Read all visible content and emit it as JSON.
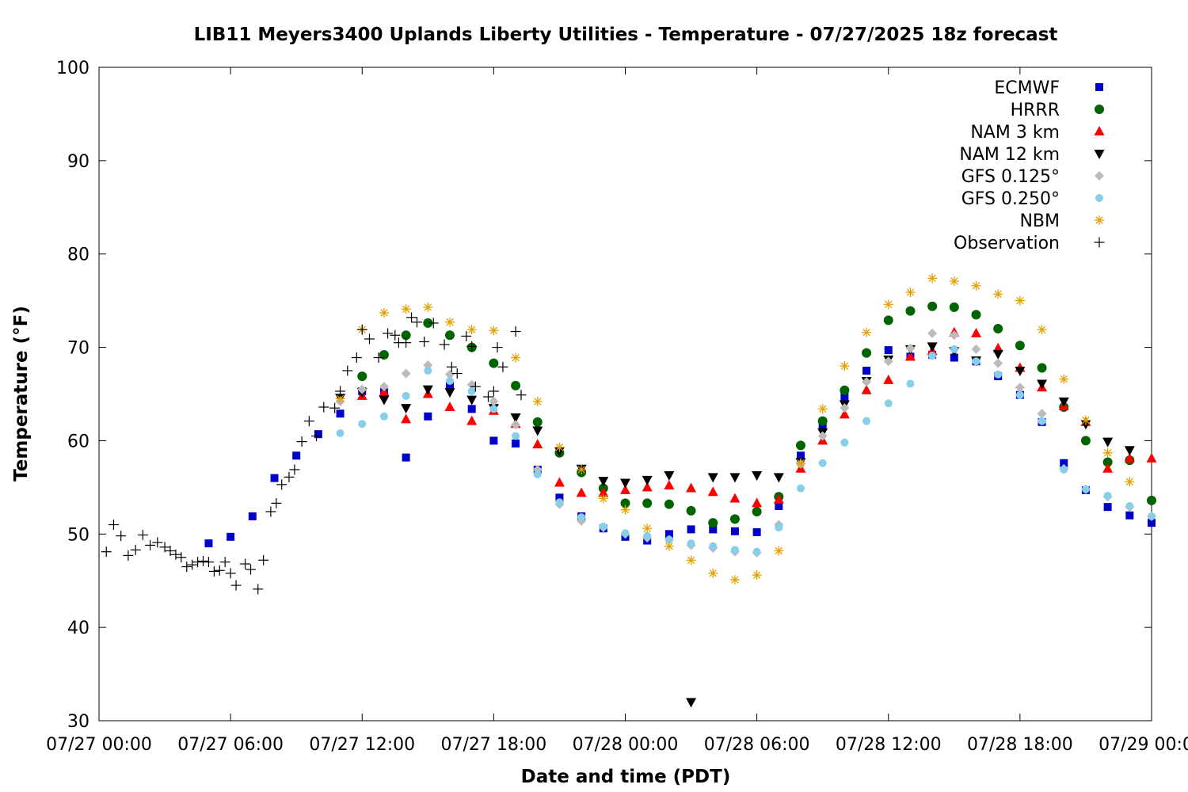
{
  "chart_data": {
    "type": "scatter",
    "title": "LIB11 Meyers3400 Uplands Liberty Utilities - Temperature - 07/27/2025 18z forecast",
    "xlabel": "Date and time (PDT)",
    "ylabel": "Temperature (°F)",
    "xlim": [
      "07/27 00:00",
      "07/29 00:00"
    ],
    "ylim": [
      30,
      100
    ],
    "x_ticks": [
      "07/27 00:00",
      "07/27 06:00",
      "07/27 12:00",
      "07/27 18:00",
      "07/28 00:00",
      "07/28 06:00",
      "07/28 12:00",
      "07/28 18:00",
      "07/29 00:00"
    ],
    "y_ticks": [
      "30",
      "40",
      "50",
      "60",
      "70",
      "80",
      "90",
      "100"
    ],
    "grid": false,
    "legend_position": "top-right",
    "series": [
      {
        "name": "ECMWF",
        "marker": "square",
        "color": "#0000cc",
        "x": [
          "07/27 05:00",
          "07/27 06:00",
          "07/27 07:00",
          "07/27 08:00",
          "07/27 09:00",
          "07/27 10:00",
          "07/27 11:00",
          "07/27 12:00",
          "07/27 13:00",
          "07/27 14:00",
          "07/27 15:00",
          "07/27 16:00",
          "07/27 17:00",
          "07/27 18:00",
          "07/27 19:00",
          "07/27 20:00",
          "07/27 21:00",
          "07/27 22:00",
          "07/27 23:00",
          "07/28 00:00",
          "07/28 01:00",
          "07/28 02:00",
          "07/28 03:00",
          "07/28 04:00",
          "07/28 05:00",
          "07/28 06:00",
          "07/28 07:00",
          "07/28 08:00",
          "07/28 09:00",
          "07/28 10:00",
          "07/28 11:00",
          "07/28 12:00",
          "07/28 13:00",
          "07/28 14:00",
          "07/28 15:00",
          "07/28 16:00",
          "07/28 17:00",
          "07/28 18:00",
          "07/28 19:00",
          "07/28 20:00",
          "07/28 21:00",
          "07/28 22:00",
          "07/28 23:00",
          "07/29 00:00"
        ],
        "y": [
          49.0,
          49.7,
          51.9,
          56.0,
          58.4,
          60.7,
          62.9,
          65.3,
          65.2,
          58.2,
          62.6,
          65.9,
          63.4,
          60.0,
          59.7,
          56.9,
          53.9,
          51.9,
          50.6,
          49.7,
          49.3,
          50.0,
          50.5,
          50.5,
          50.3,
          50.2,
          53.0,
          58.4,
          61.6,
          64.7,
          67.5,
          69.7,
          69.0,
          69.2,
          68.9,
          68.5,
          66.9,
          64.9,
          62.0,
          57.6,
          54.7,
          52.9,
          52.0,
          51.2
        ]
      },
      {
        "name": "HRRR",
        "marker": "circle",
        "color": "#006400",
        "x": [
          "07/27 12:00",
          "07/27 13:00",
          "07/27 14:00",
          "07/27 15:00",
          "07/27 16:00",
          "07/27 17:00",
          "07/27 18:00",
          "07/27 19:00",
          "07/27 20:00",
          "07/27 21:00",
          "07/27 22:00",
          "07/27 23:00",
          "07/28 00:00",
          "07/28 01:00",
          "07/28 02:00",
          "07/28 03:00",
          "07/28 04:00",
          "07/28 05:00",
          "07/28 06:00",
          "07/28 07:00",
          "07/28 08:00",
          "07/28 09:00",
          "07/28 10:00",
          "07/28 11:00",
          "07/28 12:00",
          "07/28 13:00",
          "07/28 14:00",
          "07/28 15:00",
          "07/28 16:00",
          "07/28 17:00",
          "07/28 18:00",
          "07/28 19:00",
          "07/28 20:00",
          "07/28 21:00",
          "07/28 22:00",
          "07/28 23:00",
          "07/29 00:00"
        ],
        "y": [
          66.9,
          69.2,
          71.3,
          72.6,
          71.3,
          70.0,
          68.3,
          65.9,
          62.0,
          58.7,
          56.6,
          54.9,
          53.3,
          53.3,
          53.2,
          52.5,
          51.2,
          51.6,
          52.4,
          54.0,
          59.5,
          62.1,
          65.4,
          69.4,
          72.9,
          73.9,
          74.4,
          74.3,
          73.5,
          72.0,
          70.2,
          67.8,
          63.6,
          60.0,
          57.7,
          57.9,
          53.6
        ]
      },
      {
        "name": "NAM 3 km",
        "marker": "triangle-up",
        "color": "#ff0000",
        "x": [
          "07/27 12:00",
          "07/27 13:00",
          "07/27 14:00",
          "07/27 15:00",
          "07/27 16:00",
          "07/27 17:00",
          "07/27 18:00",
          "07/27 19:00",
          "07/27 20:00",
          "07/27 21:00",
          "07/27 22:00",
          "07/27 23:00",
          "07/28 00:00",
          "07/28 01:00",
          "07/28 02:00",
          "07/28 03:00",
          "07/28 04:00",
          "07/28 05:00",
          "07/28 06:00",
          "07/28 07:00",
          "07/28 08:00",
          "07/28 09:00",
          "07/28 10:00",
          "07/28 11:00",
          "07/28 12:00",
          "07/28 13:00",
          "07/28 14:00",
          "07/28 15:00",
          "07/28 16:00",
          "07/28 17:00",
          "07/28 18:00",
          "07/28 19:00",
          "07/28 20:00",
          "07/28 21:00",
          "07/28 22:00",
          "07/28 23:00",
          "07/29 00:00"
        ],
        "y": [
          64.8,
          65.2,
          62.3,
          65.0,
          63.6,
          62.1,
          63.2,
          61.8,
          59.6,
          55.5,
          54.4,
          54.4,
          54.7,
          55.0,
          55.2,
          54.9,
          54.5,
          53.8,
          53.3,
          53.7,
          57.0,
          60.0,
          62.8,
          65.4,
          66.5,
          69.0,
          69.6,
          71.6,
          71.5,
          69.9,
          67.8,
          65.7,
          63.7,
          62.0,
          57.0,
          58.1,
          58.1
        ]
      },
      {
        "name": "NAM 12 km",
        "marker": "triangle-down",
        "color": "#000000",
        "x": [
          "07/27 11:00",
          "07/27 12:00",
          "07/27 13:00",
          "07/27 14:00",
          "07/27 15:00",
          "07/27 16:00",
          "07/27 17:00",
          "07/27 18:00",
          "07/27 19:00",
          "07/27 20:00",
          "07/27 21:00",
          "07/27 22:00",
          "07/27 23:00",
          "07/28 00:00",
          "07/28 01:00",
          "07/28 02:00",
          "07/28 03:00",
          "07/28 04:00",
          "07/28 05:00",
          "07/28 06:00",
          "07/28 07:00",
          "07/28 08:00",
          "07/28 09:00",
          "07/28 10:00",
          "07/28 11:00",
          "07/28 12:00",
          "07/28 13:00",
          "07/28 14:00",
          "07/28 15:00",
          "07/28 16:00",
          "07/28 17:00",
          "07/28 18:00",
          "07/28 19:00",
          "07/28 20:00",
          "07/28 21:00",
          "07/28 22:00",
          "07/28 23:00"
        ],
        "y": [
          64.6,
          65.2,
          64.4,
          63.5,
          65.5,
          65.2,
          64.4,
          63.5,
          62.5,
          61.1,
          58.9,
          57.0,
          55.7,
          55.5,
          55.8,
          56.3,
          32.0,
          56.1,
          56.1,
          56.3,
          56.1,
          57.7,
          60.9,
          63.9,
          66.4,
          68.7,
          69.8,
          70.1,
          69.6,
          68.6,
          69.3,
          67.5,
          66.1,
          64.2,
          61.8,
          59.9,
          59.0
        ]
      },
      {
        "name": "GFS 0.125°",
        "marker": "diamond",
        "color": "#bbbbbb",
        "x": [
          "07/27 11:00",
          "07/27 12:00",
          "07/27 13:00",
          "07/27 14:00",
          "07/27 15:00",
          "07/27 16:00",
          "07/27 17:00",
          "07/27 18:00",
          "07/27 19:00",
          "07/27 20:00",
          "07/27 21:00",
          "07/27 22:00",
          "07/27 23:00",
          "07/28 00:00",
          "07/28 01:00",
          "07/28 02:00",
          "07/28 03:00",
          "07/28 04:00",
          "07/28 05:00",
          "07/28 06:00",
          "07/28 07:00",
          "07/28 08:00",
          "07/28 09:00",
          "07/28 10:00",
          "07/28 11:00",
          "07/28 12:00",
          "07/28 13:00",
          "07/28 14:00",
          "07/28 15:00",
          "07/28 16:00",
          "07/28 17:00",
          "07/28 18:00",
          "07/28 19:00",
          "07/28 20:00",
          "07/28 21:00",
          "07/28 22:00",
          "07/28 23:00",
          "07/29 00:00"
        ],
        "y": [
          64.2,
          65.5,
          65.8,
          67.2,
          68.1,
          67.1,
          66.0,
          64.2,
          61.7,
          56.9,
          53.2,
          51.4,
          50.7,
          50.0,
          49.6,
          49.4,
          48.8,
          48.5,
          48.1,
          48.0,
          51.0,
          57.5,
          60.5,
          63.5,
          66.3,
          68.5,
          69.9,
          71.5,
          71.3,
          69.8,
          68.3,
          65.7,
          62.9,
          57.0,
          54.8,
          54.0,
          52.9,
          51.9
        ]
      },
      {
        "name": "GFS 0.250°",
        "marker": "circle-small",
        "color": "#87ceeb",
        "x": [
          "07/27 11:00",
          "07/27 12:00",
          "07/27 13:00",
          "07/27 14:00",
          "07/27 15:00",
          "07/27 16:00",
          "07/27 17:00",
          "07/27 18:00",
          "07/27 19:00",
          "07/27 20:00",
          "07/27 21:00",
          "07/27 22:00",
          "07/27 23:00",
          "07/28 00:00",
          "07/28 01:00",
          "07/28 02:00",
          "07/28 03:00",
          "07/28 04:00",
          "07/28 05:00",
          "07/28 06:00",
          "07/28 07:00",
          "07/28 08:00",
          "07/28 09:00",
          "07/28 10:00",
          "07/28 11:00",
          "07/28 12:00",
          "07/28 13:00",
          "07/28 14:00",
          "07/28 15:00",
          "07/28 16:00",
          "07/28 17:00",
          "07/28 18:00",
          "07/28 19:00",
          "07/28 20:00",
          "07/28 21:00",
          "07/28 22:00",
          "07/28 23:00",
          "07/29 00:00"
        ],
        "y": [
          60.8,
          61.8,
          62.6,
          64.8,
          67.5,
          66.4,
          65.3,
          63.4,
          60.5,
          56.4,
          53.4,
          51.8,
          50.8,
          50.1,
          49.8,
          49.4,
          49.0,
          48.7,
          48.3,
          48.1,
          50.7,
          54.9,
          57.6,
          59.8,
          62.1,
          64.0,
          66.1,
          69.1,
          69.8,
          68.5,
          67.1,
          64.9,
          62.1,
          56.9,
          54.8,
          54.1,
          53.0,
          51.9
        ]
      },
      {
        "name": "NBM",
        "marker": "asterisk",
        "color": "#e6a000",
        "x": [
          "07/27 11:00",
          "07/27 12:00",
          "07/27 13:00",
          "07/27 14:00",
          "07/27 15:00",
          "07/27 16:00",
          "07/27 17:00",
          "07/27 18:00",
          "07/27 19:00",
          "07/27 20:00",
          "07/27 21:00",
          "07/27 22:00",
          "07/27 23:00",
          "07/28 00:00",
          "07/28 01:00",
          "07/28 02:00",
          "07/28 03:00",
          "07/28 04:00",
          "07/28 05:00",
          "07/28 06:00",
          "07/28 07:00",
          "07/28 08:00",
          "07/28 09:00",
          "07/28 10:00",
          "07/28 11:00",
          "07/28 12:00",
          "07/28 13:00",
          "07/28 14:00",
          "07/28 15:00",
          "07/28 16:00",
          "07/28 17:00",
          "07/28 18:00",
          "07/28 19:00",
          "07/28 20:00",
          "07/28 21:00",
          "07/28 22:00",
          "07/28 23:00"
        ],
        "y": [
          64.5,
          71.9,
          73.7,
          74.1,
          74.3,
          72.7,
          71.9,
          71.8,
          68.9,
          64.2,
          59.3,
          56.9,
          53.8,
          52.6,
          50.6,
          48.7,
          47.2,
          45.8,
          45.1,
          45.6,
          48.2,
          57.6,
          63.4,
          68.0,
          71.6,
          74.6,
          75.9,
          77.4,
          77.1,
          76.6,
          75.7,
          75.0,
          71.9,
          66.6,
          62.2,
          58.7,
          55.6
        ]
      },
      {
        "name": "Observation",
        "marker": "plus",
        "color": "#000000",
        "x": [
          "07/27 00:20",
          "07/27 00:40",
          "07/27 01:00",
          "07/27 01:20",
          "07/27 01:40",
          "07/27 02:00",
          "07/27 02:20",
          "07/27 02:40",
          "07/27 03:00",
          "07/27 03:15",
          "07/27 03:30",
          "07/27 03:45",
          "07/27 04:00",
          "07/27 04:15",
          "07/27 04:30",
          "07/27 04:45",
          "07/27 05:00",
          "07/27 05:15",
          "07/27 05:30",
          "07/27 05:45",
          "07/27 06:00",
          "07/27 06:15",
          "07/27 06:40",
          "07/27 06:55",
          "07/27 07:15",
          "07/27 07:30",
          "07/27 07:50",
          "07/27 08:05",
          "07/27 08:20",
          "07/27 08:40",
          "07/27 08:55",
          "07/27 09:15",
          "07/27 09:35",
          "07/27 09:55",
          "07/27 10:15",
          "07/27 10:45",
          "07/27 11:00",
          "07/27 11:20",
          "07/27 11:45",
          "07/27 12:00",
          "07/27 12:20",
          "07/27 12:45",
          "07/27 13:10",
          "07/27 13:30",
          "07/27 13:40",
          "07/27 14:00",
          "07/27 14:15",
          "07/27 14:30",
          "07/27 14:50",
          "07/27 15:15",
          "07/27 15:45",
          "07/27 16:05",
          "07/27 16:20",
          "07/27 16:45",
          "07/27 17:00",
          "07/27 17:10",
          "07/27 17:45",
          "07/27 18:00",
          "07/27 18:10",
          "07/27 18:25",
          "07/27 19:00",
          "07/27 19:15"
        ],
        "y": [
          48.1,
          51.0,
          49.8,
          47.7,
          48.3,
          49.9,
          48.8,
          49.1,
          48.6,
          48.2,
          47.8,
          47.5,
          46.5,
          46.7,
          47.0,
          47.1,
          47.0,
          46.0,
          46.1,
          47.0,
          45.8,
          44.5,
          46.8,
          46.2,
          44.1,
          47.2,
          52.4,
          53.3,
          55.3,
          56.1,
          56.9,
          59.9,
          62.1,
          60.5,
          63.6,
          63.5,
          65.3,
          67.5,
          68.9,
          71.9,
          70.9,
          68.9,
          71.5,
          71.3,
          70.5,
          70.5,
          73.2,
          72.7,
          70.6,
          72.6,
          70.3,
          67.9,
          67.2,
          71.2,
          70.1,
          65.8,
          64.7,
          65.3,
          70.0,
          67.9,
          71.7,
          64.9
        ]
      }
    ]
  }
}
